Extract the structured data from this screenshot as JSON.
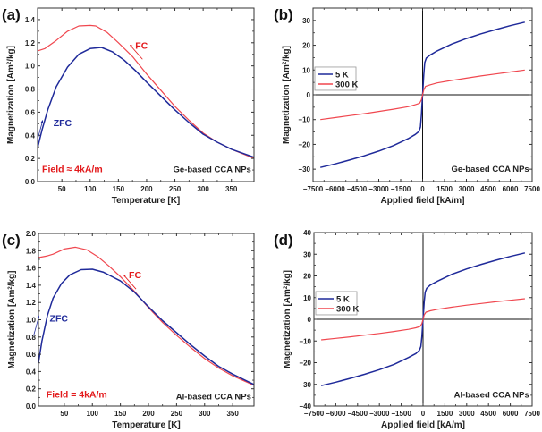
{
  "chart_data": [
    {
      "panel": "(a)",
      "type": "line",
      "xlabel": "Temperature [K]",
      "ylabel": "Magnetization [Am²/kg]",
      "ylabel_base": "Magnetization [Am",
      "ylabel_sup": "2",
      "ylabel_tail": "/kg]",
      "xlim": [
        7,
        390
      ],
      "ylim": [
        0.0,
        1.5
      ],
      "xticks": [
        50,
        100,
        150,
        200,
        250,
        300,
        350
      ],
      "yticks": [
        0.0,
        0.2,
        0.4,
        0.6,
        0.8,
        1.0,
        1.2,
        1.4
      ],
      "ytick_labels": [
        "0.0",
        "0.2",
        "0.4",
        "0.6",
        "0.8",
        "1.0",
        "1.2",
        "1.4"
      ],
      "grid": false,
      "series": [
        {
          "name": "FC",
          "color": "#f0474f",
          "x": [
            7,
            20,
            40,
            60,
            80,
            100,
            110,
            130,
            150,
            175,
            200,
            225,
            250,
            275,
            300,
            325,
            350,
            390
          ],
          "y": [
            1.13,
            1.15,
            1.22,
            1.3,
            1.345,
            1.35,
            1.345,
            1.29,
            1.2,
            1.08,
            0.93,
            0.79,
            0.65,
            0.53,
            0.42,
            0.34,
            0.28,
            0.2
          ]
        },
        {
          "name": "ZFC",
          "color": "#1f2a9a",
          "x": [
            7,
            15,
            25,
            40,
            60,
            80,
            100,
            120,
            140,
            160,
            180,
            200,
            225,
            250,
            275,
            300,
            325,
            350,
            390
          ],
          "y": [
            0.29,
            0.45,
            0.62,
            0.82,
            0.99,
            1.1,
            1.15,
            1.16,
            1.12,
            1.05,
            0.96,
            0.86,
            0.74,
            0.62,
            0.51,
            0.41,
            0.34,
            0.28,
            0.21
          ]
        }
      ],
      "annotations": [
        {
          "text": "FC",
          "color": "#e31a1c",
          "x": 180,
          "y": 1.15
        },
        {
          "text": "ZFC",
          "color": "#1f2a9a",
          "x": 35,
          "y": 0.48
        },
        {
          "text": "Field ≈ 4kA/m",
          "color": "#e31a1c",
          "x": 15,
          "y": 0.08
        },
        {
          "text": "Ge-based CCA NPs",
          "color": "#222222",
          "x": 385,
          "y": 0.08,
          "anchor": "end"
        }
      ]
    },
    {
      "panel": "(b)",
      "type": "line",
      "xlabel": "Applied field [kA/m]",
      "ylabel_base": "Magnetization [Am",
      "ylabel_sup": "2",
      "ylabel_tail": "/kg]",
      "xlim": [
        -7500,
        7500
      ],
      "ylim": [
        -35,
        35
      ],
      "xticks": [
        -7500,
        -6000,
        -4500,
        -3000,
        -1500,
        0,
        1500,
        3000,
        4500,
        6000,
        7500
      ],
      "xtick_labels": [
        "−7500",
        "−6000",
        "−4500",
        "−3000",
        "−1500",
        "0",
        "1500",
        "3000",
        "4500",
        "6000",
        "7500"
      ],
      "yticks": [
        -30,
        -20,
        -10,
        0,
        10,
        20,
        30
      ],
      "ytick_labels": [
        "−30",
        "−20",
        "−10",
        "0",
        "10",
        "20",
        "30"
      ],
      "grid": false,
      "zero_lines": true,
      "legend": {
        "placement": "center-left",
        "entries": [
          "5 K",
          "300 K"
        ]
      },
      "series": [
        {
          "name": "5 K",
          "color": "#1f2a9a",
          "x": [
            -7000,
            -6000,
            -5000,
            -4000,
            -3000,
            -2000,
            -1000,
            -500,
            -250,
            -150,
            -80,
            -30,
            0,
            30,
            80,
            150,
            250,
            500,
            1000,
            2000,
            3000,
            4000,
            5000,
            6000,
            7000
          ],
          "y": [
            -29.3,
            -27.9,
            -26.3,
            -24.6,
            -22.7,
            -20.5,
            -17.7,
            -16.0,
            -14.8,
            -13.0,
            -8.0,
            -3.0,
            0,
            3.0,
            8.0,
            13.0,
            14.8,
            16.0,
            17.7,
            20.5,
            22.7,
            24.6,
            26.3,
            27.9,
            29.3
          ]
        },
        {
          "name": "300 K",
          "color": "#f0474f",
          "x": [
            -7000,
            -6000,
            -5000,
            -4000,
            -3000,
            -2000,
            -1000,
            -500,
            -200,
            -80,
            0,
            80,
            200,
            500,
            1000,
            2000,
            3000,
            4000,
            5000,
            6000,
            7000
          ],
          "y": [
            -10.0,
            -9.2,
            -8.4,
            -7.6,
            -6.7,
            -5.8,
            -4.8,
            -4.0,
            -3.4,
            -2.0,
            0,
            2.0,
            3.4,
            4.0,
            4.8,
            5.8,
            6.7,
            7.6,
            8.4,
            9.2,
            10.0
          ]
        }
      ],
      "annotations": [
        {
          "text": "Ge-based CCA NPs",
          "color": "#222222",
          "x": 7300,
          "y": -31,
          "anchor": "end"
        }
      ]
    },
    {
      "panel": "(c)",
      "type": "line",
      "xlabel": "Temperature [K]",
      "ylabel_base": "Magnetization [Am",
      "ylabel_sup": "2",
      "ylabel_tail": "/kg]",
      "xlim": [
        4,
        388
      ],
      "ylim": [
        0.0,
        2.0
      ],
      "xticks": [
        50,
        100,
        150,
        200,
        250,
        300,
        350
      ],
      "yticks": [
        0.0,
        0.2,
        0.4,
        0.6,
        0.8,
        1.0,
        1.2,
        1.4,
        1.6,
        1.8,
        2.0
      ],
      "ytick_labels": [
        "0.0",
        "0.2",
        "0.4",
        "0.6",
        "0.8",
        "1.0",
        "1.2",
        "1.4",
        "1.6",
        "1.8",
        "2.0"
      ],
      "grid": false,
      "series": [
        {
          "name": "FC",
          "color": "#f0474f",
          "x": [
            4,
            20,
            30,
            50,
            70,
            90,
            110,
            130,
            150,
            175,
            200,
            225,
            250,
            275,
            300,
            325,
            350,
            388
          ],
          "y": [
            1.72,
            1.74,
            1.76,
            1.82,
            1.84,
            1.81,
            1.73,
            1.62,
            1.5,
            1.33,
            1.14,
            0.97,
            0.82,
            0.68,
            0.55,
            0.44,
            0.35,
            0.24
          ]
        },
        {
          "name": "ZFC",
          "color": "#1f2a9a",
          "x": [
            4,
            10,
            20,
            30,
            45,
            60,
            80,
            100,
            120,
            150,
            175,
            200,
            225,
            250,
            275,
            300,
            325,
            350,
            388
          ],
          "y": [
            0.5,
            0.75,
            1.05,
            1.25,
            1.42,
            1.52,
            1.58,
            1.585,
            1.55,
            1.45,
            1.32,
            1.15,
            0.99,
            0.85,
            0.71,
            0.58,
            0.46,
            0.37,
            0.25
          ]
        }
      ],
      "annotations": [
        {
          "text": "FC",
          "color": "#e31a1c",
          "x": 165,
          "y": 1.48
        },
        {
          "text": "ZFC",
          "color": "#1f2a9a",
          "x": 24,
          "y": 0.98
        },
        {
          "text": "Field = 4kA/m",
          "color": "#e31a1c",
          "x": 18,
          "y": 0.1
        },
        {
          "text": "Al-based CCA NPs",
          "color": "#222222",
          "x": 383,
          "y": 0.08,
          "anchor": "end"
        }
      ]
    },
    {
      "panel": "(d)",
      "type": "line",
      "xlabel": "Applied field [kA/m]",
      "ylabel_base": "Magnetization [Am",
      "ylabel_sup": "2",
      "ylabel_tail": "/kg]",
      "xlim": [
        -7500,
        7500
      ],
      "ylim": [
        -40,
        40
      ],
      "xticks": [
        -7500,
        -6000,
        -4500,
        -3000,
        -1500,
        0,
        1500,
        3000,
        4500,
        6000,
        7500
      ],
      "xtick_labels": [
        "−7500",
        "−6000",
        "−4500",
        "−3000",
        "−1500",
        "0",
        "1500",
        "3000",
        "4500",
        "6000",
        "7500"
      ],
      "yticks": [
        -40,
        -30,
        -20,
        -10,
        0,
        10,
        20,
        30,
        40
      ],
      "ytick_labels": [
        "−40",
        "−30",
        "−20",
        "−10",
        "0",
        "10",
        "20",
        "30",
        "40"
      ],
      "grid": false,
      "zero_lines": true,
      "legend": {
        "placement": "center-left",
        "entries": [
          "5 K",
          "300 K"
        ]
      },
      "series": [
        {
          "name": "5 K",
          "color": "#1f2a9a",
          "x": [
            -7000,
            -6000,
            -5000,
            -4000,
            -3000,
            -2000,
            -1000,
            -500,
            -250,
            -150,
            -80,
            -30,
            0,
            30,
            80,
            150,
            250,
            500,
            1000,
            2000,
            3000,
            4000,
            5000,
            6000,
            7000
          ],
          "y": [
            -30.6,
            -29.0,
            -27.2,
            -25.3,
            -23.2,
            -20.8,
            -17.6,
            -15.8,
            -14.3,
            -12.5,
            -8.0,
            -3.0,
            0,
            3.0,
            8.0,
            12.5,
            14.3,
            15.8,
            17.6,
            20.8,
            23.2,
            25.3,
            27.2,
            29.0,
            30.6
          ]
        },
        {
          "name": "300 K",
          "color": "#f0474f",
          "x": [
            -7000,
            -6000,
            -5000,
            -4000,
            -3000,
            -2000,
            -1000,
            -500,
            -200,
            -80,
            0,
            80,
            200,
            500,
            1000,
            2000,
            3000,
            4000,
            5000,
            6000,
            7000
          ],
          "y": [
            -9.5,
            -8.8,
            -8.1,
            -7.3,
            -6.5,
            -5.6,
            -4.6,
            -3.9,
            -3.3,
            -2.0,
            0,
            2.0,
            3.3,
            3.9,
            4.6,
            5.6,
            6.5,
            7.3,
            8.1,
            8.8,
            9.5
          ]
        }
      ],
      "annotations": [
        {
          "text": "Al-based CCA NPs",
          "color": "#222222",
          "x": 7300,
          "y": -36,
          "anchor": "end"
        }
      ]
    }
  ]
}
